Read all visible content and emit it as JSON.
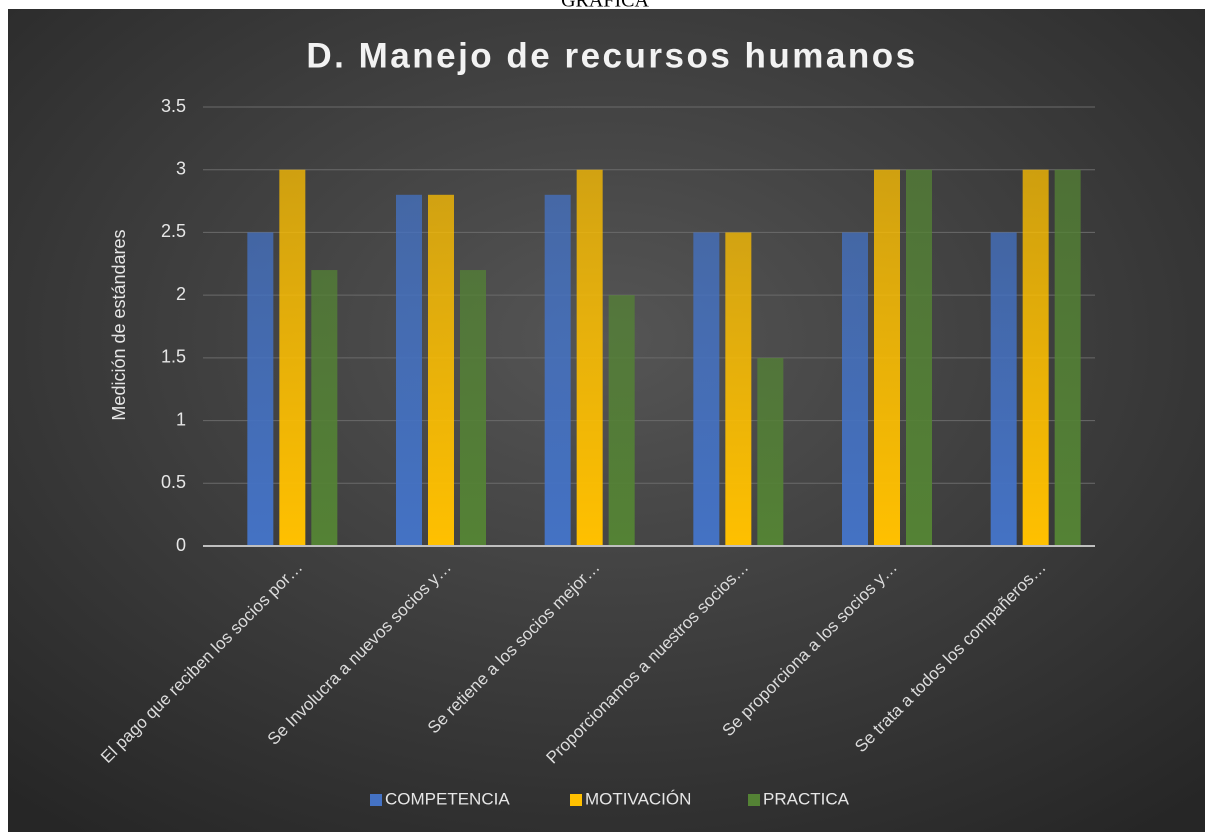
{
  "heading": "GRÁFICA",
  "chart_data": {
    "type": "bar",
    "title": "D. Manejo de recursos humanos",
    "y_label": "Medición de estándares",
    "categories": [
      "El pago que reciben los socios por…",
      "Se Involucra a nuevos socios y…",
      "Se retiene a los socios mejor…",
      "Proporcionamos a nuestros socios…",
      "Se proporciona a los socios y…",
      "Se trata a todos los compañeros…"
    ],
    "series": [
      {
        "name": "COMPETENCIA",
        "color": "#4472c4",
        "values": [
          2.5,
          2.8,
          2.8,
          2.5,
          2.5,
          2.5
        ]
      },
      {
        "name": "MOTIVACIÓN",
        "color": "#ffc000",
        "values": [
          3,
          2.8,
          3,
          2.5,
          3,
          3
        ]
      },
      {
        "name": "PRACTICA",
        "color": "#548235",
        "values": [
          2.2,
          2.2,
          2,
          1.5,
          3,
          3
        ]
      }
    ],
    "ylim": [
      0,
      3.5
    ],
    "yticks": [
      0,
      0.5,
      1,
      1.5,
      2,
      2.5,
      3,
      3.5
    ],
    "grid": true,
    "legend": "bottom"
  }
}
